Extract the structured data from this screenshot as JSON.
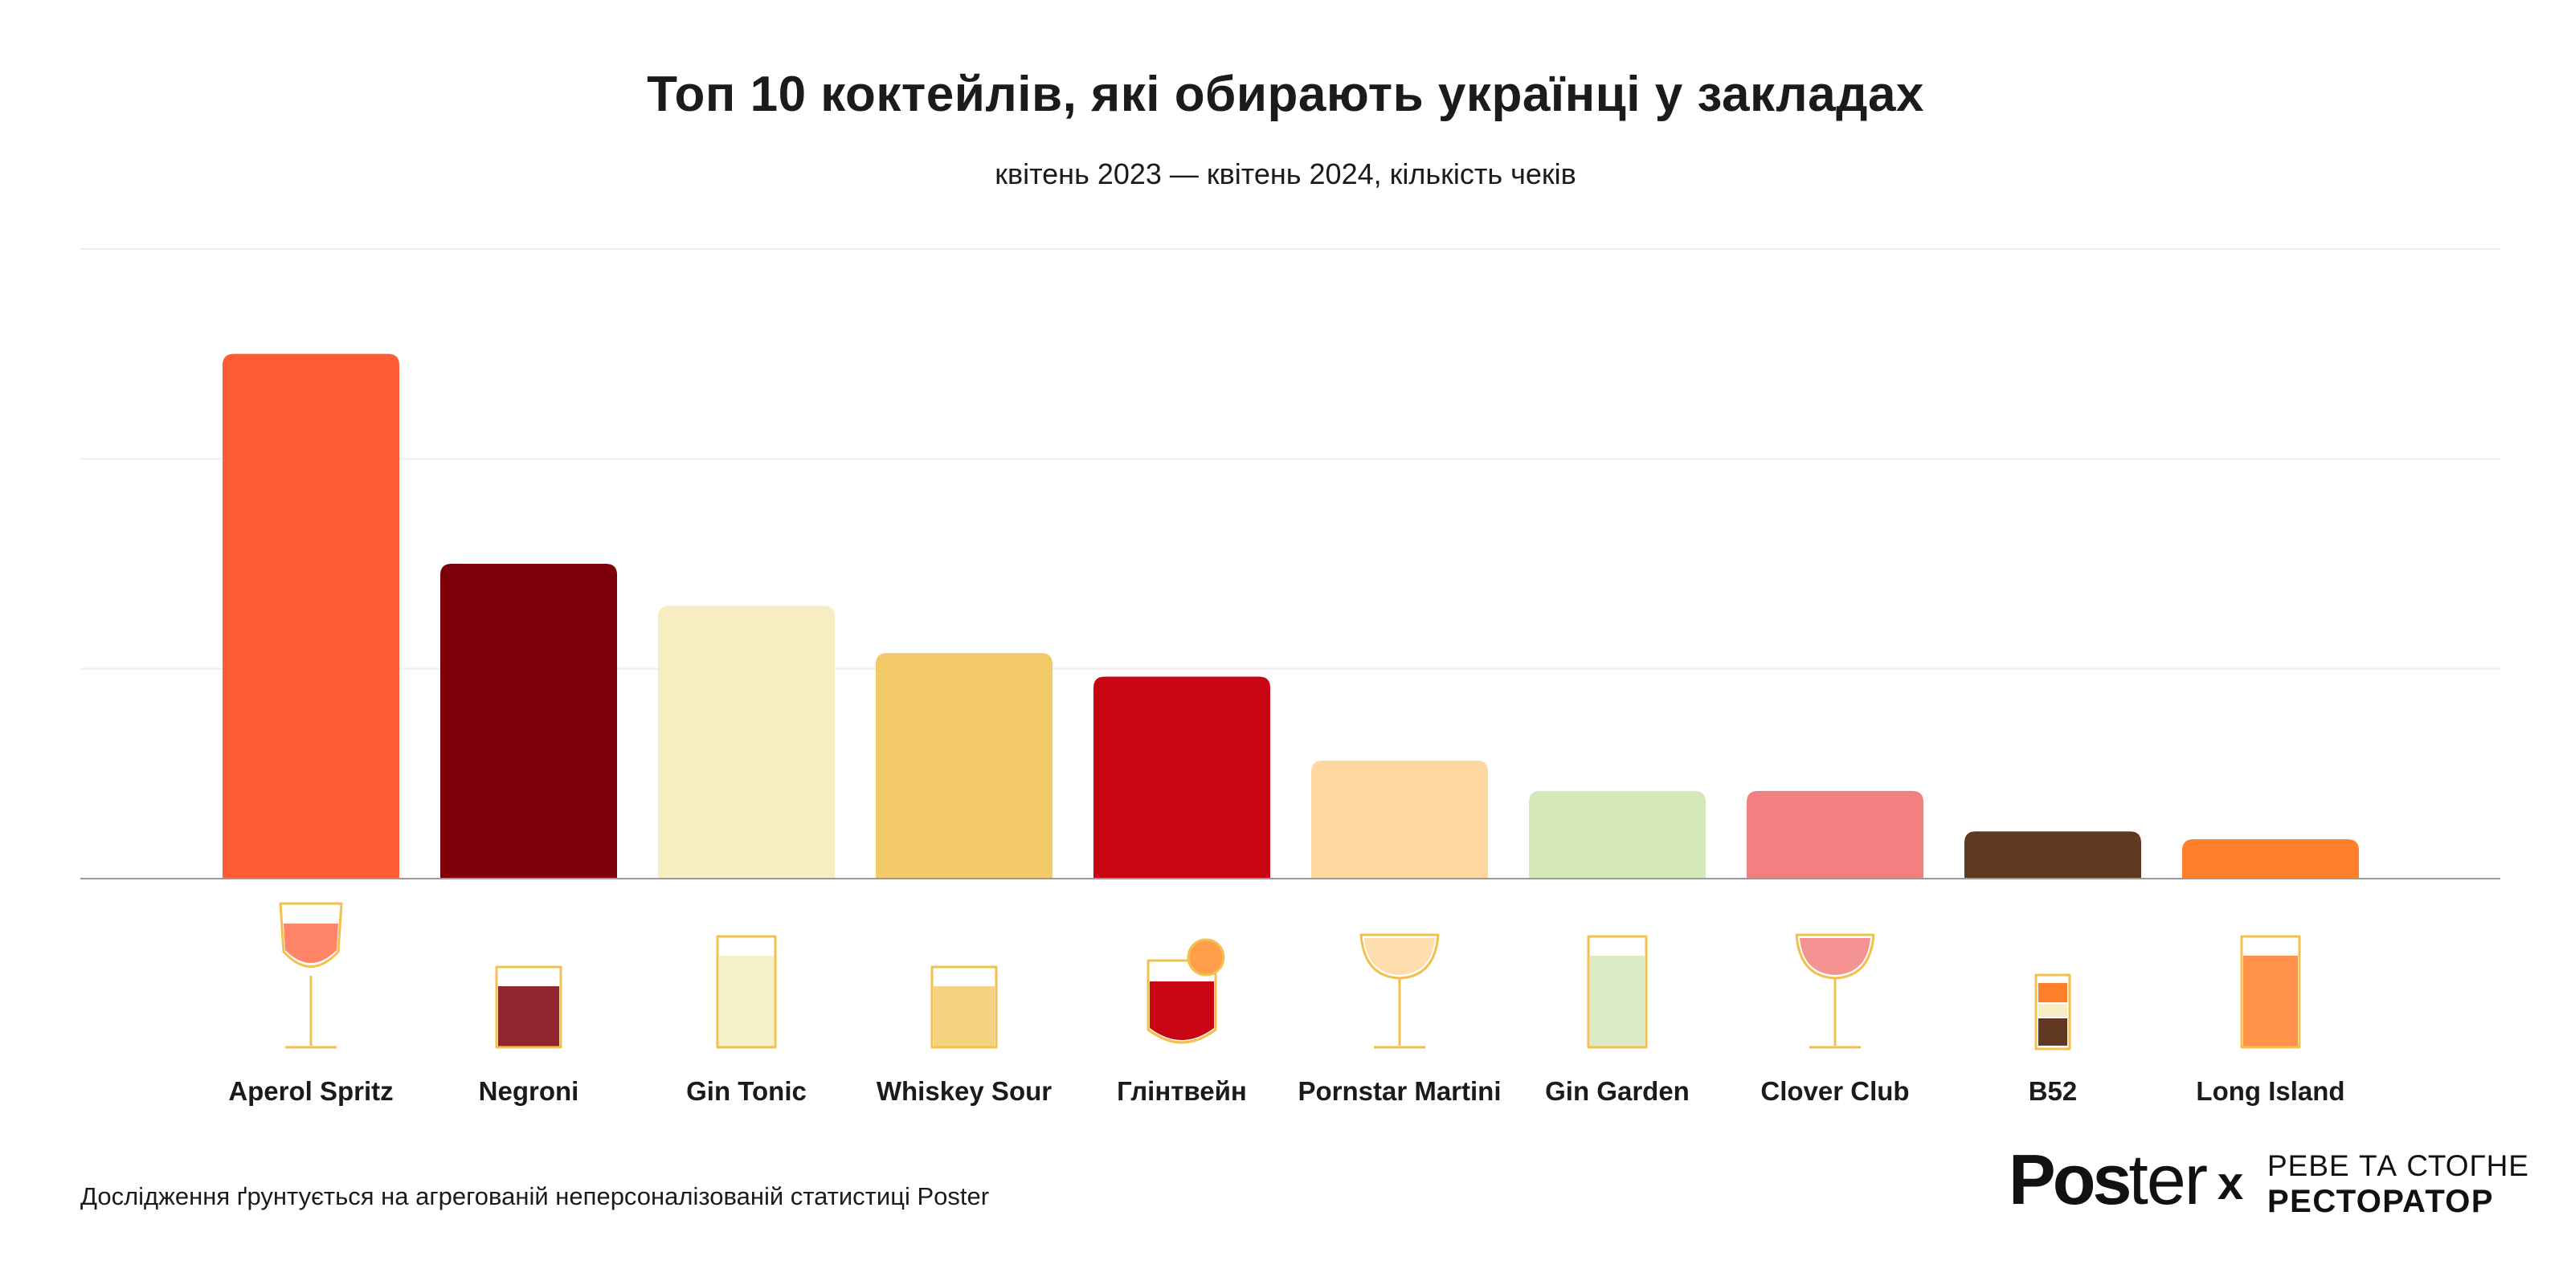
{
  "chart_data": {
    "type": "bar",
    "title": "Топ 10 коктейлів, які обирають українці у закладах",
    "subtitle": "квітень 2023 — квітень 2024, кількість чеків",
    "categories": [
      "Aperol Spritz",
      "Negroni",
      "Gin Tonic",
      "Whiskey Sour",
      "Глінтвейн",
      "Pornstar Martini",
      "Gin Garden",
      "Clover Club",
      "B52",
      "Long Island"
    ],
    "values": [
      100,
      60,
      52,
      43,
      38.5,
      22.5,
      16.7,
      16.7,
      9,
      7.5
    ],
    "colors": [
      "#FF5B35",
      "#7E0009",
      "#F6EEC2",
      "#F2CA68",
      "#C90413",
      "#FFD89F",
      "#D4E8BA",
      "#F38080",
      "#613821",
      "#FF7E2A"
    ],
    "icons": [
      "wine-glass-icon",
      "rocks-glass-icon",
      "highball-glass-icon",
      "rocks-glass-icon",
      "mug-icon",
      "coupe-glass-icon",
      "highball-glass-icon",
      "coupe-glass-icon",
      "shot-glass-icon",
      "highball-glass-icon"
    ],
    "ylim": [
      0,
      120
    ],
    "gridlines": [
      40,
      80,
      120
    ],
    "xlabel": "",
    "ylabel": "",
    "grid": true,
    "legend": "none"
  },
  "footnote": "Дослідження ґрунтується на агрегованій неперсоналізованій статистиці Poster",
  "logos": {
    "poster_bold": "Pos",
    "poster_light": "ter",
    "separator": "x",
    "reve_line1": "РЕВЕ ТА СТОГНЕ",
    "reve_line2": "РЕСТОРАТОР"
  },
  "palette": {
    "outline": "#F2C04E",
    "text": "#1b1b1b",
    "axis": "#9a9a9a",
    "grid": "#eeeeee"
  }
}
